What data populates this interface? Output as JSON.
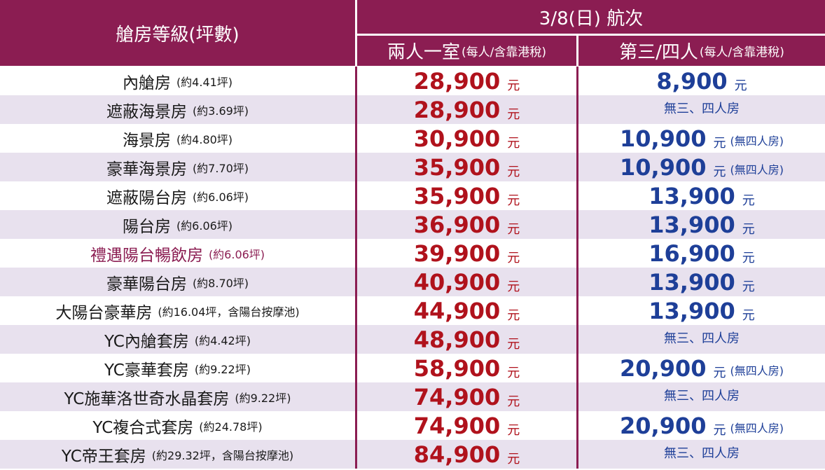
{
  "header": {
    "cabin_class": "艙房等級(坪數)",
    "sailing": "3/8(日) 航次",
    "two_person": "兩人一室",
    "two_person_note": "(每人/含靠港稅)",
    "third_fourth": "第三/四人",
    "third_fourth_note": "(每人/含靠港稅)"
  },
  "currency": "元",
  "colors": {
    "header_bg": "#8b1d52",
    "price_red": "#b0121c",
    "price_blue": "#1e3f98",
    "stripe": "#e8e1ee"
  },
  "rows": [
    {
      "name": "內艙房",
      "size": "(約4.41坪)",
      "two": "28,900",
      "three": "8,900",
      "three_note": "",
      "three_text": ""
    },
    {
      "name": "遮蔽海景房",
      "size": "(約3.69坪)",
      "two": "28,900",
      "three": "",
      "three_note": "",
      "three_text": "無三、四人房"
    },
    {
      "name": "海景房",
      "size": "(約4.80坪)",
      "two": "30,900",
      "three": "10,900",
      "three_note": "(無四人房)",
      "three_text": ""
    },
    {
      "name": "豪華海景房",
      "size": "(約7.70坪)",
      "two": "35,900",
      "three": "10,900",
      "three_note": "(無四人房)",
      "three_text": ""
    },
    {
      "name": "遮蔽陽台房",
      "size": "(約6.06坪)",
      "two": "35,900",
      "three": "13,900",
      "three_note": "",
      "three_text": ""
    },
    {
      "name": "陽台房",
      "size": "(約6.06坪)",
      "two": "36,900",
      "three": "13,900",
      "three_note": "",
      "three_text": ""
    },
    {
      "name": "禮遇陽台暢飲房",
      "size": "(約6.06坪)",
      "two": "39,900",
      "three": "16,900",
      "three_note": "",
      "three_text": "",
      "highlight": true
    },
    {
      "name": "豪華陽台房",
      "size": "(約8.70坪)",
      "two": "40,900",
      "three": "13,900",
      "three_note": "",
      "three_text": ""
    },
    {
      "name": "大陽台豪華房",
      "size": "(約16.04坪，含陽台按摩池)",
      "two": "44,900",
      "three": "13,900",
      "three_note": "",
      "three_text": ""
    },
    {
      "name": "YC內艙套房",
      "size": "(約4.42坪)",
      "two": "48,900",
      "three": "",
      "three_note": "",
      "three_text": "無三、四人房"
    },
    {
      "name": "YC豪華套房",
      "size": "(約9.22坪)",
      "two": "58,900",
      "three": "20,900",
      "three_note": "(無四人房)",
      "three_text": ""
    },
    {
      "name": "YC施華洛世奇水晶套房",
      "size": "(約9.22坪)",
      "two": "74,900",
      "three": "",
      "three_note": "",
      "three_text": "無三、四人房"
    },
    {
      "name": "YC複合式套房",
      "size": "(約24.78坪)",
      "two": "74,900",
      "three": "20,900",
      "three_note": "(無四人房)",
      "three_text": ""
    },
    {
      "name": "YC帝王套房",
      "size": "(約29.32坪，含陽台按摩池)",
      "two": "84,900",
      "three": "",
      "three_note": "",
      "three_text": "無三、四人房"
    }
  ]
}
